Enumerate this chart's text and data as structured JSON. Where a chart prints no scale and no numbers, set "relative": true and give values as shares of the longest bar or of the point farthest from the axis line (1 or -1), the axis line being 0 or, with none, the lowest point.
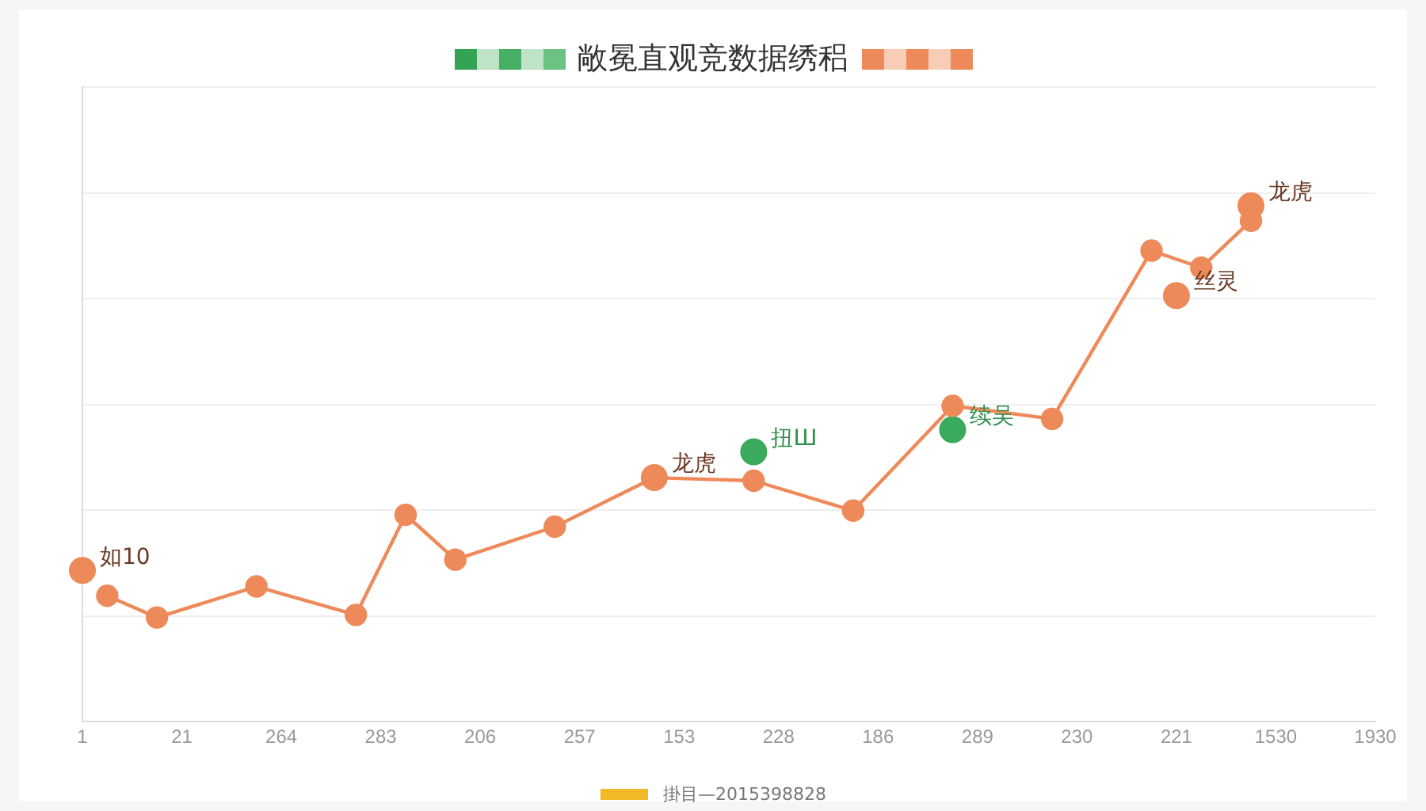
{
  "chart_data": {
    "type": "line",
    "title": "敞冕直观竞数据绣稆",
    "relative": true,
    "categories": [
      "1",
      null,
      null,
      null,
      "21",
      null,
      null,
      null,
      "264",
      null,
      null,
      null,
      "283",
      null,
      null,
      null,
      "206",
      null,
      null,
      null,
      "257",
      null,
      null,
      null,
      "153",
      null,
      null,
      null,
      "228",
      null,
      null,
      null,
      "186",
      null,
      null,
      null,
      "289",
      null,
      null,
      null,
      "230",
      null,
      null,
      null,
      "221",
      null,
      null,
      null,
      "1530",
      null,
      null,
      null,
      "1930"
    ],
    "series": [
      {
        "color": "#ee8a5a",
        "values": [
          null,
          0.244,
          null,
          0.202,
          null,
          null,
          null,
          0.262,
          null,
          null,
          null,
          0.207,
          null,
          0.401,
          null,
          0.314,
          null,
          null,
          null,
          0.378,
          null,
          null,
          null,
          0.473,
          null,
          null,
          null,
          0.467,
          null,
          null,
          null,
          0.409,
          null,
          null,
          null,
          0.612,
          null,
          null,
          null,
          0.587,
          null,
          null,
          null,
          0.913,
          null,
          0.88,
          null,
          0.971,
          null,
          null,
          null,
          null,
          null
        ]
      },
      {
        "type": "scatter",
        "name": "如10",
        "color": "#ee8a5a",
        "values": [
          0.293,
          null,
          null,
          null,
          null,
          null,
          null,
          null,
          null,
          null,
          null,
          null,
          null,
          null,
          null,
          null,
          null,
          null,
          null,
          null,
          null,
          null,
          null,
          null,
          null,
          null,
          null,
          null,
          null,
          null,
          null,
          null,
          null,
          null,
          null,
          null,
          null,
          null,
          null,
          null,
          null,
          null,
          null,
          null,
          null,
          null,
          null,
          null,
          null,
          null,
          null,
          null,
          null
        ]
      },
      {
        "type": "scatter",
        "name": "龙虎",
        "color": "#ee8a5a",
        "values": [
          null,
          null,
          null,
          null,
          null,
          null,
          null,
          null,
          null,
          null,
          null,
          null,
          null,
          null,
          null,
          null,
          null,
          null,
          null,
          null,
          null,
          null,
          null,
          0.473,
          null,
          null,
          null,
          null,
          null,
          null,
          null,
          null,
          null,
          null,
          null,
          null,
          null,
          null,
          null,
          null,
          null,
          null,
          null,
          null,
          null,
          null,
          null,
          null,
          null,
          null,
          null,
          null,
          null
        ]
      },
      {
        "type": "scatter",
        "name": "扭Ш",
        "color": "#3aaa5c",
        "values": [
          null,
          null,
          null,
          null,
          null,
          null,
          null,
          null,
          null,
          null,
          null,
          null,
          null,
          null,
          null,
          null,
          null,
          null,
          null,
          null,
          null,
          null,
          null,
          null,
          null,
          null,
          null,
          0.523,
          null,
          null,
          null,
          null,
          null,
          null,
          null,
          null,
          null,
          null,
          null,
          null,
          null,
          null,
          null,
          null,
          null,
          null,
          null,
          null,
          null,
          null,
          null,
          null,
          null
        ]
      },
      {
        "type": "scatter",
        "name": "续吴",
        "color": "#3aaa5c",
        "values": [
          null,
          null,
          null,
          null,
          null,
          null,
          null,
          null,
          null,
          null,
          null,
          null,
          null,
          null,
          null,
          null,
          null,
          null,
          null,
          null,
          null,
          null,
          null,
          null,
          null,
          null,
          null,
          null,
          null,
          null,
          null,
          null,
          null,
          null,
          null,
          0.566,
          null,
          null,
          null,
          null,
          null,
          null,
          null,
          null,
          null,
          null,
          null,
          null,
          null,
          null,
          null,
          null,
          null
        ]
      },
      {
        "type": "scatter",
        "name": "丝灵",
        "color": "#ee8a5a",
        "values": [
          null,
          null,
          null,
          null,
          null,
          null,
          null,
          null,
          null,
          null,
          null,
          null,
          null,
          null,
          null,
          null,
          null,
          null,
          null,
          null,
          null,
          null,
          null,
          null,
          null,
          null,
          null,
          null,
          null,
          null,
          null,
          null,
          null,
          null,
          null,
          null,
          null,
          null,
          null,
          null,
          null,
          null,
          null,
          null,
          0.826,
          null,
          null,
          null,
          null,
          null,
          null,
          null,
          null
        ]
      },
      {
        "type": "scatter",
        "name": "龙虎",
        "color": "#ee8a5a",
        "values": [
          null,
          null,
          null,
          null,
          null,
          null,
          null,
          null,
          null,
          null,
          null,
          null,
          null,
          null,
          null,
          null,
          null,
          null,
          null,
          null,
          null,
          null,
          null,
          null,
          null,
          null,
          null,
          null,
          null,
          null,
          null,
          null,
          null,
          null,
          null,
          null,
          null,
          null,
          null,
          null,
          null,
          null,
          null,
          null,
          null,
          null,
          null,
          1,
          null,
          null,
          null,
          null,
          null
        ]
      }
    ],
    "annotations": [
      "掛目—2015398828"
    ],
    "grid": "y",
    "legend": false,
    "marker": "circle",
    "line_style": "solid"
  }
}
